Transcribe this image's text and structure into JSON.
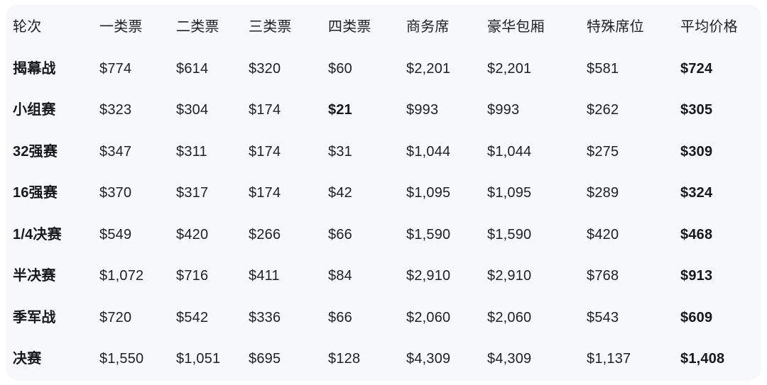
{
  "colors": {
    "page_bg": "#ffffff",
    "card_bg": "#f7f8fa",
    "text": "#202124",
    "emphasis_text": "#17181a"
  },
  "table": {
    "columns": [
      "轮次",
      "一类票",
      "二类票",
      "三类票",
      "四类票",
      "商务席",
      "豪华包厢",
      "特殊席位",
      "平均价格"
    ],
    "rows": [
      {
        "label": "揭幕战",
        "cells": [
          "$774",
          "$614",
          "$320",
          "$60",
          "$2,201",
          "$2,201",
          "$581"
        ],
        "avg": "$724"
      },
      {
        "label": "小组赛",
        "cells": [
          "$323",
          "$304",
          "$174",
          "$21",
          "$993",
          "$993",
          "$262"
        ],
        "avg": "$305"
      },
      {
        "label": "32强赛",
        "cells": [
          "$347",
          "$311",
          "$174",
          "$31",
          "$1,044",
          "$1,044",
          "$275"
        ],
        "avg": "$309"
      },
      {
        "label": "16强赛",
        "cells": [
          "$370",
          "$317",
          "$174",
          "$42",
          "$1,095",
          "$1,095",
          "$289"
        ],
        "avg": "$324"
      },
      {
        "label": "1/4决赛",
        "cells": [
          "$549",
          "$420",
          "$266",
          "$66",
          "$1,590",
          "$1,590",
          "$420"
        ],
        "avg": "$468"
      },
      {
        "label": "半决赛",
        "cells": [
          "$1,072",
          "$716",
          "$411",
          "$84",
          "$2,910",
          "$2,910",
          "$768"
        ],
        "avg": "$913"
      },
      {
        "label": "季军战",
        "cells": [
          "$720",
          "$542",
          "$336",
          "$66",
          "$2,060",
          "$2,060",
          "$543"
        ],
        "avg": "$609"
      },
      {
        "label": "决赛",
        "cells": [
          "$1,550",
          "$1,051",
          "$695",
          "$128",
          "$4,309",
          "$4,309",
          "$1,137"
        ],
        "avg": "$1,408"
      }
    ]
  },
  "chart_data": {
    "type": "table",
    "title": "",
    "columns": [
      "轮次",
      "一类票",
      "二类票",
      "三类票",
      "四类票",
      "商务席",
      "豪华包厢",
      "特殊席位",
      "平均价格"
    ],
    "rows": [
      [
        "揭幕战",
        774,
        614,
        320,
        60,
        2201,
        2201,
        581,
        724
      ],
      [
        "小组赛",
        323,
        304,
        174,
        21,
        993,
        993,
        262,
        305
      ],
      [
        "32强赛",
        347,
        311,
        174,
        31,
        1044,
        1044,
        275,
        309
      ],
      [
        "16强赛",
        370,
        317,
        174,
        42,
        1095,
        1095,
        289,
        324
      ],
      [
        "1/4决赛",
        549,
        420,
        266,
        66,
        1590,
        1590,
        420,
        468
      ],
      [
        "半决赛",
        1072,
        716,
        411,
        84,
        2910,
        2910,
        768,
        913
      ],
      [
        "季军战",
        720,
        542,
        336,
        66,
        2060,
        2060,
        543,
        609
      ],
      [
        "决赛",
        1550,
        1051,
        695,
        128,
        4309,
        4309,
        1137,
        1408
      ]
    ],
    "currency": "USD",
    "notes": "row labels, average column and the minimum price $21 are bold"
  }
}
